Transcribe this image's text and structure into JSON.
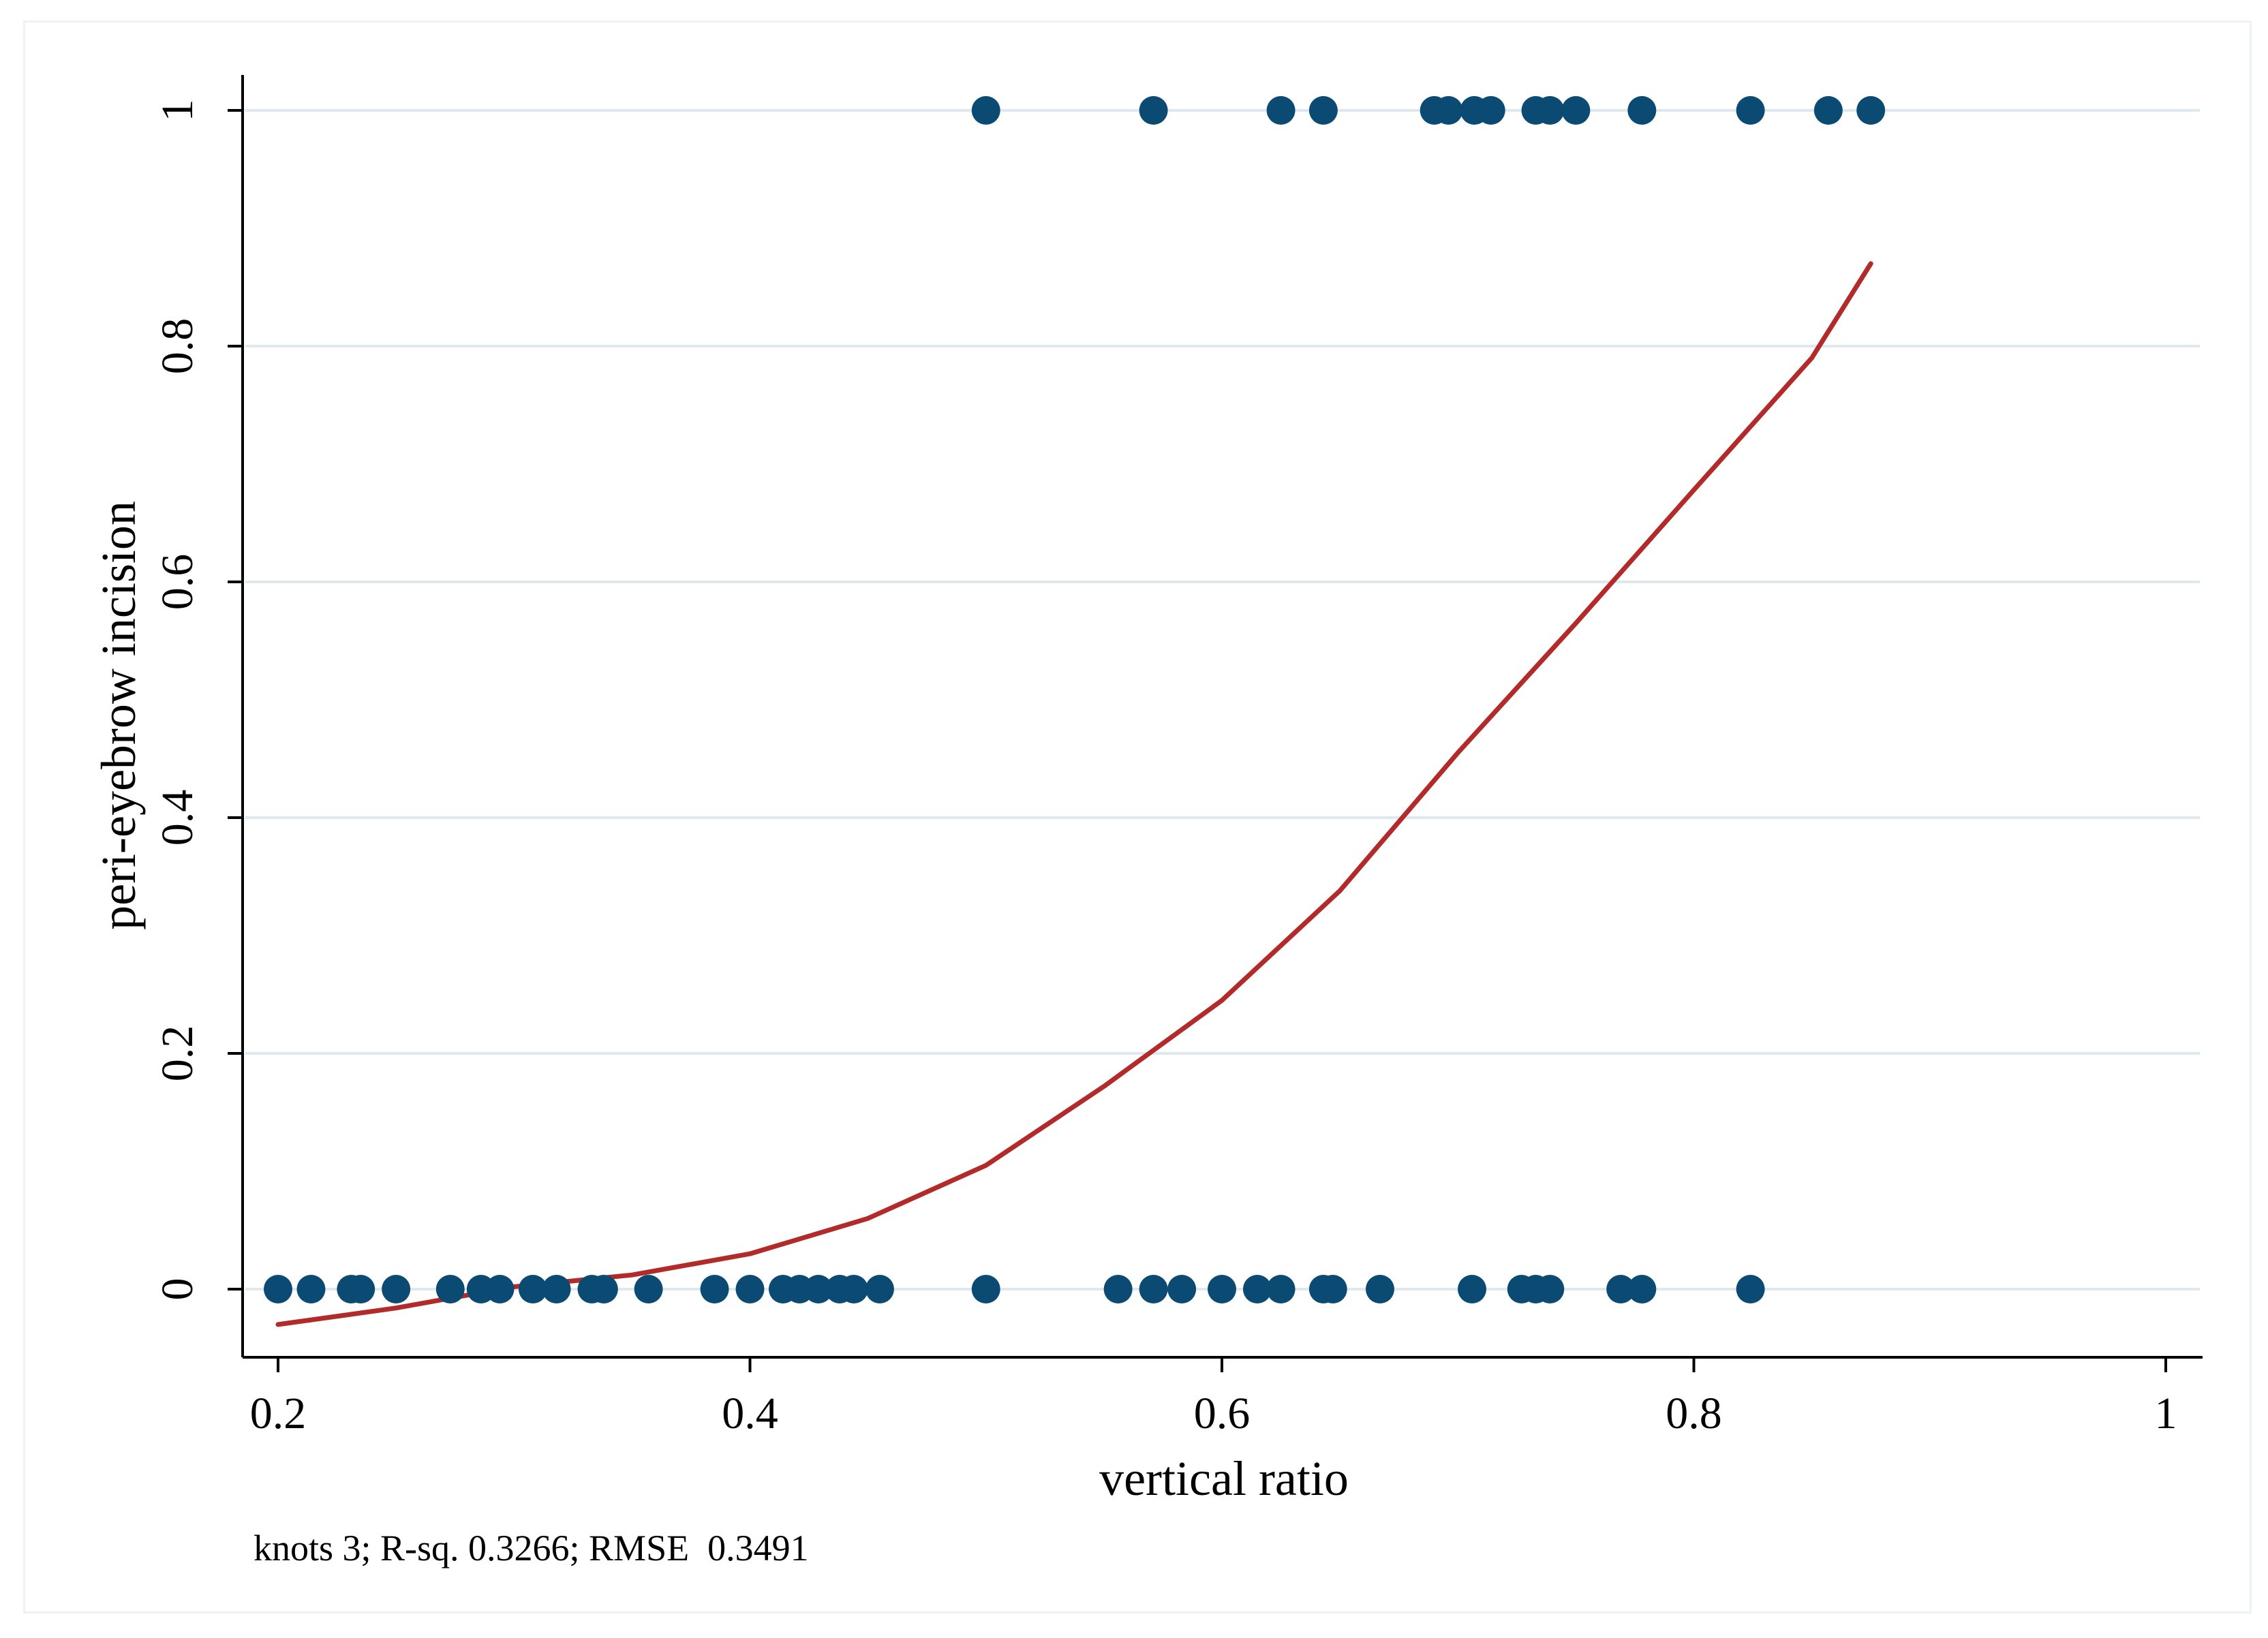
{
  "chart_data": {
    "type": "scatter",
    "xlabel": "vertical ratio",
    "ylabel": "peri-eyebrow incision",
    "note": "knots 3; R-sq. 0.3266; RMSE  0.3491",
    "xlim": [
      0.2,
      1.0
    ],
    "ylim": [
      -0.06,
      1.06
    ],
    "x_ticks": [
      0.2,
      0.4,
      0.6,
      0.8,
      1
    ],
    "x_tick_labels": [
      "0.2",
      "0.4",
      "0.6",
      "0.8",
      "1"
    ],
    "y_ticks": [
      0,
      0.2,
      0.4,
      0.6,
      0.8,
      1
    ],
    "y_tick_labels": [
      "0",
      "0.2",
      "0.4",
      "0.6",
      "0.8",
      "1"
    ],
    "grid": "horizontal",
    "colors": {
      "points": "#0b4a72",
      "curve": "#b22a2a",
      "grid": "#dde9ef",
      "axis": "#000000"
    },
    "series": [
      {
        "type": "scatter",
        "points": [
          [
            0.5,
            1
          ],
          [
            0.571,
            1
          ],
          [
            0.625,
            1
          ],
          [
            0.643,
            1
          ],
          [
            0.69,
            1
          ],
          [
            0.696,
            1
          ],
          [
            0.707,
            1
          ],
          [
            0.714,
            1
          ],
          [
            0.733,
            1
          ],
          [
            0.739,
            1
          ],
          [
            0.75,
            1
          ],
          [
            0.778,
            1
          ],
          [
            0.824,
            1
          ],
          [
            0.857,
            1
          ],
          [
            0.875,
            1
          ],
          [
            0.2,
            0
          ],
          [
            0.214,
            0
          ],
          [
            0.231,
            0
          ],
          [
            0.235,
            0
          ],
          [
            0.25,
            0
          ],
          [
            0.273,
            0
          ],
          [
            0.286,
            0
          ],
          [
            0.294,
            0
          ],
          [
            0.308,
            0
          ],
          [
            0.318,
            0
          ],
          [
            0.333,
            0
          ],
          [
            0.338,
            0
          ],
          [
            0.357,
            0
          ],
          [
            0.385,
            0
          ],
          [
            0.4,
            0
          ],
          [
            0.414,
            0
          ],
          [
            0.421,
            0
          ],
          [
            0.429,
            0
          ],
          [
            0.438,
            0
          ],
          [
            0.444,
            0
          ],
          [
            0.455,
            0
          ],
          [
            0.5,
            0
          ],
          [
            0.556,
            0
          ],
          [
            0.571,
            0
          ],
          [
            0.583,
            0
          ],
          [
            0.6,
            0
          ],
          [
            0.615,
            0
          ],
          [
            0.625,
            0
          ],
          [
            0.643,
            0
          ],
          [
            0.647,
            0
          ],
          [
            0.667,
            0
          ],
          [
            0.706,
            0
          ],
          [
            0.727,
            0
          ],
          [
            0.733,
            0
          ],
          [
            0.739,
            0
          ],
          [
            0.769,
            0
          ],
          [
            0.778,
            0
          ],
          [
            0.824,
            0
          ]
        ]
      },
      {
        "type": "line",
        "points": [
          [
            0.2,
            -0.03
          ],
          [
            0.25,
            -0.016
          ],
          [
            0.3,
            0.002
          ],
          [
            0.35,
            0.012
          ],
          [
            0.4,
            0.03
          ],
          [
            0.45,
            0.06
          ],
          [
            0.5,
            0.105
          ],
          [
            0.55,
            0.172
          ],
          [
            0.6,
            0.245
          ],
          [
            0.65,
            0.338
          ],
          [
            0.7,
            0.455
          ],
          [
            0.75,
            0.565
          ],
          [
            0.8,
            0.678
          ],
          [
            0.85,
            0.79
          ],
          [
            0.875,
            0.87
          ]
        ]
      }
    ]
  }
}
